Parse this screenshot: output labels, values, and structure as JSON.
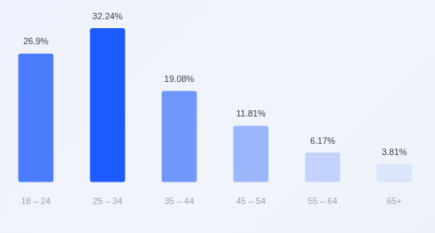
{
  "chart_data": {
    "type": "bar",
    "categories": [
      "18 – 24",
      "25 – 34",
      "35 – 44",
      "45 – 54",
      "55 – 64",
      "65+"
    ],
    "values": [
      26.9,
      32.24,
      19.08,
      11.81,
      6.17,
      3.81
    ],
    "value_labels": [
      "26.9%",
      "32.24%",
      "19.08%",
      "11.81%",
      "6.17%",
      "3.81%"
    ],
    "colors": [
      "#4b7cfb",
      "#1e5bff",
      "#7097fb",
      "#9bb6fb",
      "#c3d3fb",
      "#dbe5fc"
    ],
    "grid": false,
    "data_labels": true,
    "tick_labels": "x"
  }
}
